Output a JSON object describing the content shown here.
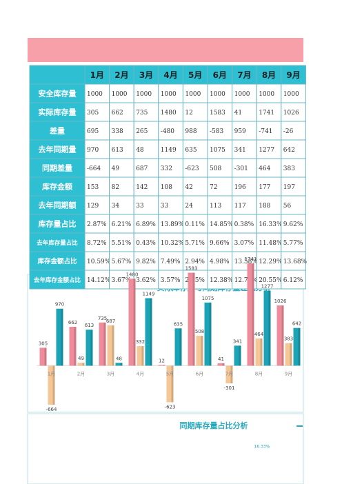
{
  "table": {
    "header": [
      "1月",
      "2月",
      "3月",
      "4月",
      "5月",
      "6月",
      "7月",
      "8月",
      "9月"
    ],
    "rows": [
      {
        "label": "安全库存量",
        "cells": [
          "1000",
          "1000",
          "1000",
          "1000",
          "1000",
          "1000",
          "1000",
          "1000",
          "1000"
        ]
      },
      {
        "label": "实际库存量",
        "cells": [
          "305",
          "662",
          "735",
          "1480",
          "12",
          "1583",
          "41",
          "1741",
          "1026"
        ]
      },
      {
        "label": "差量",
        "cells": [
          "695",
          "338",
          "265",
          "-480",
          "988",
          "-583",
          "959",
          "-741",
          "-26"
        ]
      },
      {
        "label": "去年同期量",
        "cells": [
          "970",
          "613",
          "48",
          "1149",
          "635",
          "1075",
          "341",
          "1277",
          "642"
        ]
      },
      {
        "label": "同期差量",
        "cells": [
          "-664",
          "49",
          "687",
          "332",
          "-623",
          "508",
          "-301",
          "464",
          "383"
        ]
      },
      {
        "label": "库存金额",
        "cells": [
          "153",
          "82",
          "142",
          "108",
          "42",
          "72",
          "196",
          "177",
          "197"
        ]
      },
      {
        "label": "去年同期额",
        "cells": [
          "129",
          "34",
          "33",
          "33",
          "24",
          "113",
          "117",
          "188",
          "56"
        ]
      },
      {
        "label": "库存量占比",
        "cells": [
          "2.87%",
          "6.21%",
          "6.89%",
          "13.89%",
          "0.11%",
          "14.85%",
          "0.38%",
          "16.33%",
          "9.62%"
        ]
      },
      {
        "label": "去年库存量占比",
        "cells": [
          "8.72%",
          "5.51%",
          "0.43%",
          "10.32%",
          "5.71%",
          "9.66%",
          "3.07%",
          "11.48%",
          "5.77%"
        ]
      },
      {
        "label": "库存金额占比",
        "cells": [
          "10.59%",
          "5.67%",
          "9.82%",
          "7.49%",
          "2.94%",
          "4.98%",
          "13.58%",
          "12.29%",
          "13.68%"
        ]
      },
      {
        "label": "去年库存金额占比",
        "cells": [
          "14.12%",
          "3.67%",
          "3.62%",
          "3.57%",
          "2.65%",
          "12.38%",
          "12.76%",
          "20.55%",
          "6.12%"
        ]
      }
    ]
  },
  "chart_data": {
    "type": "bar",
    "title": "实际库存量与同期库存量差额分析",
    "categories": [
      "1月",
      "2月",
      "3月",
      "4月",
      "5月",
      "6月",
      "7月",
      "8月",
      "9月"
    ],
    "series": [
      {
        "color": "#ef8c9b",
        "values": [
          305,
          662,
          735,
          1480,
          12,
          1583,
          41,
          1741,
          1026
        ]
      },
      {
        "color": "#f6c796",
        "values": [
          -664,
          49,
          687,
          332,
          -623,
          508,
          -301,
          464,
          383
        ]
      },
      {
        "color": "#1ba3b6",
        "values": [
          970,
          613,
          48,
          1149,
          635,
          1075,
          341,
          1277,
          642
        ]
      }
    ],
    "ylim": [
      -700,
      2000
    ]
  },
  "section2": {
    "title": "同期库存量占比分析",
    "label": "16.33%"
  }
}
